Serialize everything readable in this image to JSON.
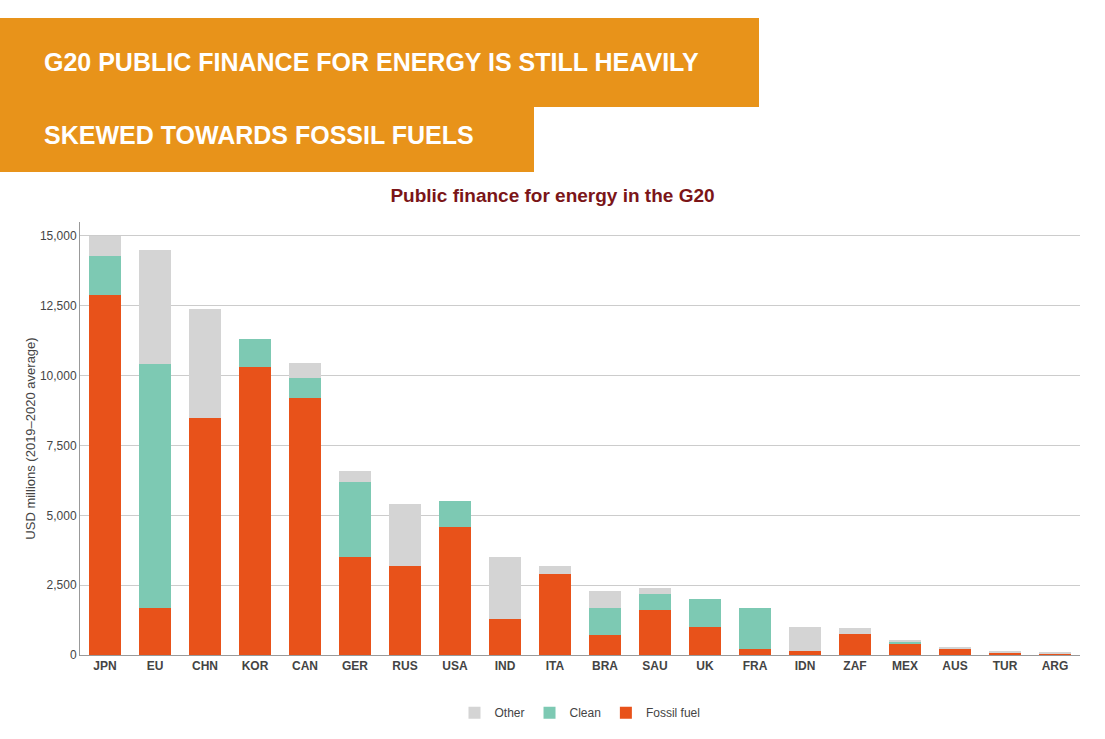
{
  "chart_data": {
    "type": "bar",
    "stacked": true,
    "title": "Public finance for energy in the G20",
    "annotations": [
      "G20 PUBLIC FINANCE FOR ENERGY IS STILL HEAVILY",
      "SKEWED TOWARDS FOSSIL FUELS"
    ],
    "ylabel": "USD millions (2019–2020 average)",
    "categories": [
      "JPN",
      "EU",
      "CHN",
      "KOR",
      "CAN",
      "GER",
      "RUS",
      "USA",
      "IND",
      "ITA",
      "BRA",
      "SAU",
      "UK",
      "FRA",
      "IDN",
      "ZAF",
      "MEX",
      "AUS",
      "TUR",
      "ARG"
    ],
    "series": [
      {
        "name": "Fossil fuel",
        "color": "#e8521a",
        "values": [
          12900,
          1700,
          8500,
          10300,
          9200,
          3500,
          3200,
          4600,
          1300,
          2900,
          700,
          1600,
          1000,
          200,
          150,
          750,
          400,
          200,
          100,
          50
        ]
      },
      {
        "name": "Clean",
        "color": "#7dc9b3",
        "values": [
          1400,
          8700,
          0,
          1000,
          700,
          2700,
          0,
          900,
          0,
          0,
          1000,
          600,
          1000,
          1500,
          0,
          0,
          100,
          0,
          0,
          0
        ]
      },
      {
        "name": "Other",
        "color": "#d4d4d4",
        "values": [
          700,
          4100,
          3900,
          0,
          550,
          400,
          2200,
          0,
          2200,
          300,
          600,
          200,
          0,
          0,
          850,
          200,
          50,
          100,
          50,
          50
        ]
      }
    ],
    "ylim": [
      0,
      15500
    ],
    "yticks": [
      0,
      {
        "value": 2500,
        "label": "2,500"
      },
      {
        "value": 5000,
        "label": "5,000"
      },
      {
        "value": 7500,
        "label": "7,500"
      },
      {
        "value": 10000,
        "label": "10,000"
      },
      {
        "value": 12500,
        "label": "12,500"
      },
      {
        "value": 15000,
        "label": "15,000"
      }
    ],
    "grid": true,
    "legend": "bottom"
  }
}
